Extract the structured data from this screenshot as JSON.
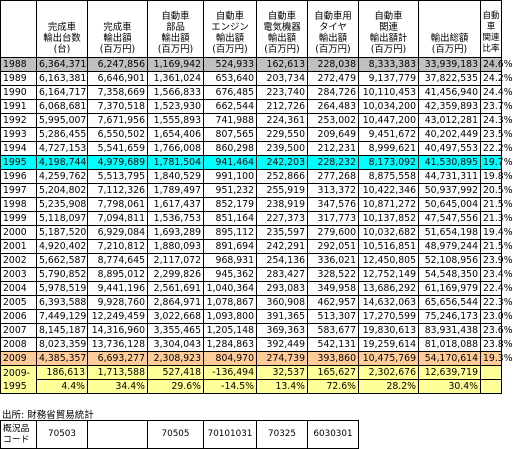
{
  "headers": [
    "",
    "完成車\n輸出台数\n(台)",
    "完成車\n輸出額\n(百万円)",
    "自動車\n部品\n輸出額\n(百万円)",
    "自動車\nエンジン\n輸出額\n(百万円)",
    "自動車\n電気機器\n輸出額\n(百万円)",
    "自動車用\nタイヤ\n輸出額\n(百万円)",
    "自動車\n関連\n輸出額計\n(百万円)",
    "輸出総額\n(百万円)",
    "自動車\n関連\n比率"
  ],
  "rows": [
    {
      "year": "1988",
      "v": [
        "6,364,371",
        "6,247,856",
        "1,169,942",
        "524,933",
        "162,613",
        "228,038",
        "8,333,383",
        "33,939,183",
        "24.6%"
      ],
      "hl": "gray"
    },
    {
      "year": "1989",
      "v": [
        "6,163,381",
        "6,646,901",
        "1,361,024",
        "653,640",
        "203,734",
        "272,479",
        "9,137,779",
        "37,822,535",
        "24.2%"
      ]
    },
    {
      "year": "1990",
      "v": [
        "6,164,717",
        "7,358,669",
        "1,566,833",
        "676,485",
        "223,740",
        "284,726",
        "10,110,453",
        "41,456,940",
        "24.4%"
      ]
    },
    {
      "year": "1991",
      "v": [
        "6,068,681",
        "7,370,518",
        "1,523,930",
        "662,544",
        "212,726",
        "264,483",
        "10,034,200",
        "42,359,893",
        "23.7%"
      ]
    },
    {
      "year": "1992",
      "v": [
        "5,995,007",
        "7,671,956",
        "1,555,893",
        "741,988",
        "224,361",
        "253,002",
        "10,447,200",
        "43,012,281",
        "24.3%"
      ]
    },
    {
      "year": "1993",
      "v": [
        "5,286,455",
        "6,550,502",
        "1,654,406",
        "807,565",
        "229,550",
        "209,649",
        "9,451,672",
        "40,202,449",
        "23.5%"
      ]
    },
    {
      "year": "1994",
      "v": [
        "4,727,153",
        "5,541,659",
        "1,766,008",
        "860,298",
        "239,500",
        "212,231",
        "8,999,621",
        "40,497,553",
        "22.2%"
      ]
    },
    {
      "year": "1995",
      "v": [
        "4,198,744",
        "4,979,689",
        "1,781,504",
        "941,464",
        "242,203",
        "228,232",
        "8,173,092",
        "41,530,895",
        "19.7%"
      ],
      "hl": "cyan"
    },
    {
      "year": "1996",
      "v": [
        "4,259,762",
        "5,513,795",
        "1,840,529",
        "991,100",
        "252,866",
        "277,268",
        "8,875,558",
        "44,731,311",
        "19.8%"
      ]
    },
    {
      "year": "1997",
      "v": [
        "5,204,802",
        "7,112,326",
        "1,789,497",
        "951,232",
        "255,919",
        "313,372",
        "10,422,346",
        "50,937,992",
        "20.5%"
      ]
    },
    {
      "year": "1998",
      "v": [
        "5,235,908",
        "7,798,061",
        "1,617,437",
        "852,179",
        "238,919",
        "347,576",
        "10,871,272",
        "50,645,004",
        "21.5%"
      ]
    },
    {
      "year": "1999",
      "v": [
        "5,118,097",
        "7,094,811",
        "1,536,753",
        "851,164",
        "227,373",
        "317,773",
        "10,137,852",
        "47,547,556",
        "21.3%"
      ]
    },
    {
      "year": "2000",
      "v": [
        "5,187,520",
        "6,929,084",
        "1,693,289",
        "895,112",
        "235,597",
        "279,600",
        "10,032,682",
        "51,654,198",
        "19.4%"
      ]
    },
    {
      "year": "2001",
      "v": [
        "4,920,402",
        "7,210,812",
        "1,880,093",
        "891,694",
        "242,291",
        "292,051",
        "10,516,851",
        "48,979,244",
        "21.5%"
      ]
    },
    {
      "year": "2002",
      "v": [
        "5,662,587",
        "8,774,645",
        "2,117,072",
        "968,931",
        "254,136",
        "336,021",
        "12,450,805",
        "52,108,956",
        "23.9%"
      ]
    },
    {
      "year": "2003",
      "v": [
        "5,790,852",
        "8,895,012",
        "2,299,826",
        "945,362",
        "283,427",
        "328,522",
        "12,752,149",
        "54,548,350",
        "23.4%"
      ]
    },
    {
      "year": "2004",
      "v": [
        "5,978,519",
        "9,441,196",
        "2,561,691",
        "1,040,364",
        "293,083",
        "349,958",
        "13,686,292",
        "61,169,979",
        "22.4%"
      ]
    },
    {
      "year": "2005",
      "v": [
        "6,393,588",
        "9,928,760",
        "2,864,971",
        "1,078,867",
        "360,908",
        "462,957",
        "14,632,063",
        "65,656,544",
        "22.3%"
      ]
    },
    {
      "year": "2006",
      "v": [
        "7,449,129",
        "12,249,459",
        "3,022,668",
        "1,093,800",
        "391,365",
        "513,307",
        "17,270,599",
        "75,246,173",
        "23.0%"
      ]
    },
    {
      "year": "2007",
      "v": [
        "8,145,187",
        "14,316,960",
        "3,355,465",
        "1,205,148",
        "369,363",
        "583,677",
        "19,830,613",
        "83,931,438",
        "23.6%"
      ]
    },
    {
      "year": "2008",
      "v": [
        "8,023,359",
        "13,736,128",
        "3,304,043",
        "1,284,863",
        "392,449",
        "542,131",
        "19,259,614",
        "81,018,088",
        "23.8%"
      ]
    },
    {
      "year": "2009",
      "v": [
        "4,385,357",
        "6,693,277",
        "2,308,923",
        "804,970",
        "274,739",
        "393,860",
        "10,475,769",
        "54,170,614",
        "19.3%"
      ],
      "hl": "orange"
    }
  ],
  "diff": {
    "label_top": "2009-",
    "label_bottom": "1995",
    "abs": [
      "186,613",
      "1,713,588",
      "527,418",
      "-136,494",
      "32,537",
      "165,627",
      "2,302,676",
      "12,639,719",
      ""
    ],
    "pct": [
      "4.4%",
      "34.4%",
      "29.6%",
      "-14.5%",
      "13.4%",
      "72.6%",
      "28.2%",
      "30.4%",
      ""
    ]
  },
  "source": "出所: 財務省貿易統計",
  "codes": {
    "label": "概況品\nコード",
    "cells": [
      "",
      "70503",
      "",
      "70505",
      "70101031",
      "70325",
      "6030301",
      "",
      ""
    ]
  }
}
